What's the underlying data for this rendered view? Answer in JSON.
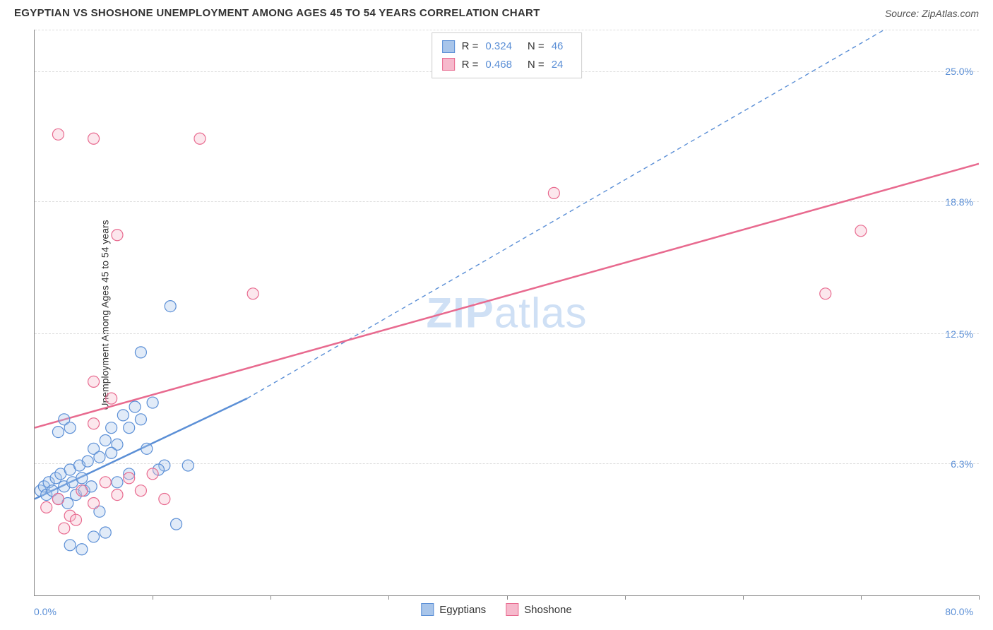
{
  "title": "EGYPTIAN VS SHOSHONE UNEMPLOYMENT AMONG AGES 45 TO 54 YEARS CORRELATION CHART",
  "source": "Source: ZipAtlas.com",
  "watermark": {
    "prefix": "ZIP",
    "suffix": "atlas"
  },
  "yaxis_title": "Unemployment Among Ages 45 to 54 years",
  "chart": {
    "type": "scatter",
    "xlim": [
      0,
      80
    ],
    "ylim": [
      0,
      27
    ],
    "x_ticks": [
      10,
      20,
      30,
      40,
      50,
      60,
      70,
      80
    ],
    "y_gridlines": [
      6.3,
      12.5,
      18.8,
      25.0,
      27.0
    ],
    "y_labels": [
      {
        "v": 6.3,
        "t": "6.3%"
      },
      {
        "v": 12.5,
        "t": "12.5%"
      },
      {
        "v": 18.8,
        "t": "18.8%"
      },
      {
        "v": 25.0,
        "t": "25.0%"
      }
    ],
    "x_min_label": "0.0%",
    "x_max_label": "80.0%",
    "background_color": "#ffffff",
    "grid_color": "#dddddd",
    "marker_radius": 8,
    "marker_stroke_width": 1.2,
    "marker_fill_opacity": 0.35,
    "series": [
      {
        "name": "Egyptians",
        "color": "#5b8fd6",
        "fill": "#a8c5ea",
        "R": "0.324",
        "N": "46",
        "points": [
          [
            0.5,
            5.0
          ],
          [
            0.8,
            5.2
          ],
          [
            1.0,
            4.8
          ],
          [
            1.2,
            5.4
          ],
          [
            1.5,
            5.0
          ],
          [
            1.8,
            5.6
          ],
          [
            2.0,
            4.6
          ],
          [
            2.2,
            5.8
          ],
          [
            2.5,
            5.2
          ],
          [
            2.8,
            4.4
          ],
          [
            3.0,
            6.0
          ],
          [
            3.2,
            5.4
          ],
          [
            3.5,
            4.8
          ],
          [
            3.8,
            6.2
          ],
          [
            4.0,
            5.6
          ],
          [
            4.2,
            5.0
          ],
          [
            4.5,
            6.4
          ],
          [
            4.8,
            5.2
          ],
          [
            5.0,
            7.0
          ],
          [
            5.5,
            6.6
          ],
          [
            6.0,
            7.4
          ],
          [
            6.5,
            8.0
          ],
          [
            7.0,
            7.2
          ],
          [
            7.5,
            8.6
          ],
          [
            8.0,
            8.0
          ],
          [
            8.5,
            9.0
          ],
          [
            9.0,
            8.4
          ],
          [
            9.5,
            7.0
          ],
          [
            10.0,
            9.2
          ],
          [
            11.0,
            6.2
          ],
          [
            12.0,
            3.4
          ],
          [
            3.0,
            2.4
          ],
          [
            4.0,
            2.2
          ],
          [
            5.0,
            2.8
          ],
          [
            6.0,
            3.0
          ],
          [
            2.0,
            7.8
          ],
          [
            2.5,
            8.4
          ],
          [
            3.0,
            8.0
          ],
          [
            11.5,
            13.8
          ],
          [
            9.0,
            11.6
          ],
          [
            8.0,
            5.8
          ],
          [
            10.5,
            6.0
          ],
          [
            7.0,
            5.4
          ],
          [
            13.0,
            6.2
          ],
          [
            6.5,
            6.8
          ],
          [
            5.5,
            4.0
          ]
        ],
        "trend": {
          "x1": 0,
          "y1": 4.6,
          "x2": 18,
          "y2": 9.4,
          "width": 2.5,
          "style": "solid"
        },
        "trend_ext": {
          "x1": 18,
          "y1": 9.4,
          "x2": 72,
          "y2": 27.0,
          "width": 1.4,
          "style": "dashed"
        }
      },
      {
        "name": "Shoshone",
        "color": "#e86a8f",
        "fill": "#f6b9cc",
        "R": "0.468",
        "N": "24",
        "points": [
          [
            1.0,
            4.2
          ],
          [
            2.0,
            4.6
          ],
          [
            3.0,
            3.8
          ],
          [
            4.0,
            5.0
          ],
          [
            5.0,
            4.4
          ],
          [
            6.0,
            5.4
          ],
          [
            7.0,
            4.8
          ],
          [
            8.0,
            5.6
          ],
          [
            9.0,
            5.0
          ],
          [
            10.0,
            5.8
          ],
          [
            11.0,
            4.6
          ],
          [
            5.0,
            8.2
          ],
          [
            6.5,
            9.4
          ],
          [
            2.5,
            3.2
          ],
          [
            3.5,
            3.6
          ],
          [
            2.0,
            22.0
          ],
          [
            5.0,
            21.8
          ],
          [
            14.0,
            21.8
          ],
          [
            7.0,
            17.2
          ],
          [
            18.5,
            14.4
          ],
          [
            44.0,
            19.2
          ],
          [
            67.0,
            14.4
          ],
          [
            70.0,
            17.4
          ],
          [
            5.0,
            10.2
          ]
        ],
        "trend": {
          "x1": 0,
          "y1": 8.0,
          "x2": 80,
          "y2": 20.6,
          "width": 2.5,
          "style": "solid"
        }
      }
    ]
  },
  "legend_bottom": [
    {
      "label": "Egyptians",
      "fill": "#a8c5ea",
      "stroke": "#5b8fd6"
    },
    {
      "label": "Shoshone",
      "fill": "#f6b9cc",
      "stroke": "#e86a8f"
    }
  ]
}
